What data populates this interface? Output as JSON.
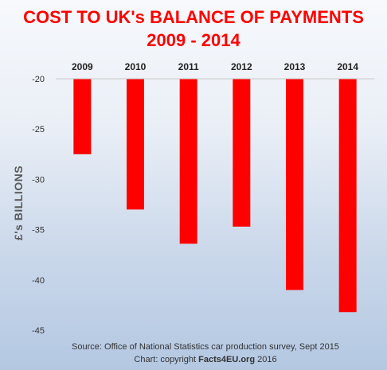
{
  "title_line1": "COST TO UK's BALANCE OF PAYMENTS",
  "title_line2": "2009 - 2014",
  "ylabel": "£'s  BILLIONS",
  "source_line1": "Source: Office of National Statistics car production survey, Sept 2015",
  "source_line2_prefix": "Chart: copyright ",
  "source_line2_brand": "Facts4EU.org",
  "source_line2_suffix": " 2016",
  "colors": {
    "bar": "#ff0000",
    "title": "#ff0000"
  },
  "chart_data": {
    "type": "bar",
    "categories": [
      "2009",
      "2010",
      "2011",
      "2012",
      "2013",
      "2014"
    ],
    "values": [
      -27.5,
      -33.0,
      -36.4,
      -34.7,
      -41.0,
      -43.2
    ],
    "ylabel": "£'s  BILLIONS",
    "ylim": [
      -45,
      -20
    ],
    "yticks": [
      -20,
      -25,
      -30,
      -35,
      -40,
      -45
    ],
    "x_axis_position": "top",
    "grid": false,
    "legend": "none"
  }
}
